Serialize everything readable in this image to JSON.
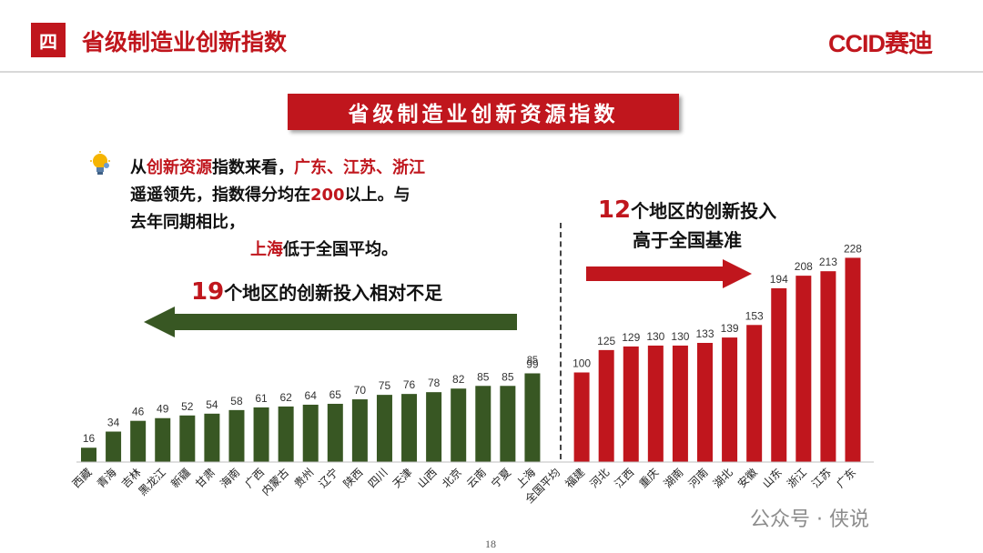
{
  "header": {
    "section_number": "四",
    "title": "省级制造业创新指数",
    "logo": "CCID赛迪"
  },
  "banner": "省级制造业创新资源指数",
  "note": {
    "p1": "从",
    "h1": "创新资源",
    "p2": "指数来看，",
    "h2": "广东、江苏、浙江",
    "p3": "遥遥领先，指数得分均在",
    "h3": "200",
    "p4": "以上。与去年同期相比，",
    "h4": "上海",
    "p5": "低于全国平均。"
  },
  "right_caption": {
    "number": "12",
    "line1": "个地区的创新投入",
    "line2": "高于全国基准"
  },
  "left_caption": {
    "number": "19",
    "text": "个地区的创新投入相对不足"
  },
  "colors": {
    "red": "#c0161d",
    "green": "#385723"
  },
  "chart_data": {
    "type": "bar",
    "categories": [
      "西藏",
      "青海",
      "吉林",
      "黑龙江",
      "新疆",
      "甘肃",
      "海南",
      "广西",
      "内蒙古",
      "贵州",
      "辽宁",
      "陕西",
      "四川",
      "天津",
      "山西",
      "北京",
      "云南",
      "宁夏",
      "上海",
      "全国平均",
      "福建",
      "河北",
      "江西",
      "重庆",
      "湖南",
      "河南",
      "湖北",
      "安徽",
      "山东",
      "浙江",
      "江苏",
      "广东"
    ],
    "values": [
      16,
      34,
      46,
      49,
      52,
      54,
      58,
      61,
      62,
      64,
      65,
      70,
      75,
      76,
      78,
      82,
      85,
      85,
      99,
      null,
      100,
      125,
      129,
      130,
      130,
      133,
      139,
      153,
      194,
      208,
      213,
      228
    ],
    "groups": [
      "low",
      "low",
      "low",
      "low",
      "low",
      "low",
      "low",
      "low",
      "low",
      "low",
      "low",
      "low",
      "low",
      "low",
      "low",
      "low",
      "low",
      "low",
      "low",
      "baseline",
      "high",
      "high",
      "high",
      "high",
      "high",
      "high",
      "high",
      "high",
      "high",
      "high",
      "high",
      "high"
    ],
    "ylim": [
      0,
      240
    ]
  },
  "page_number": "18",
  "watermark": "公众号 · 侠说"
}
